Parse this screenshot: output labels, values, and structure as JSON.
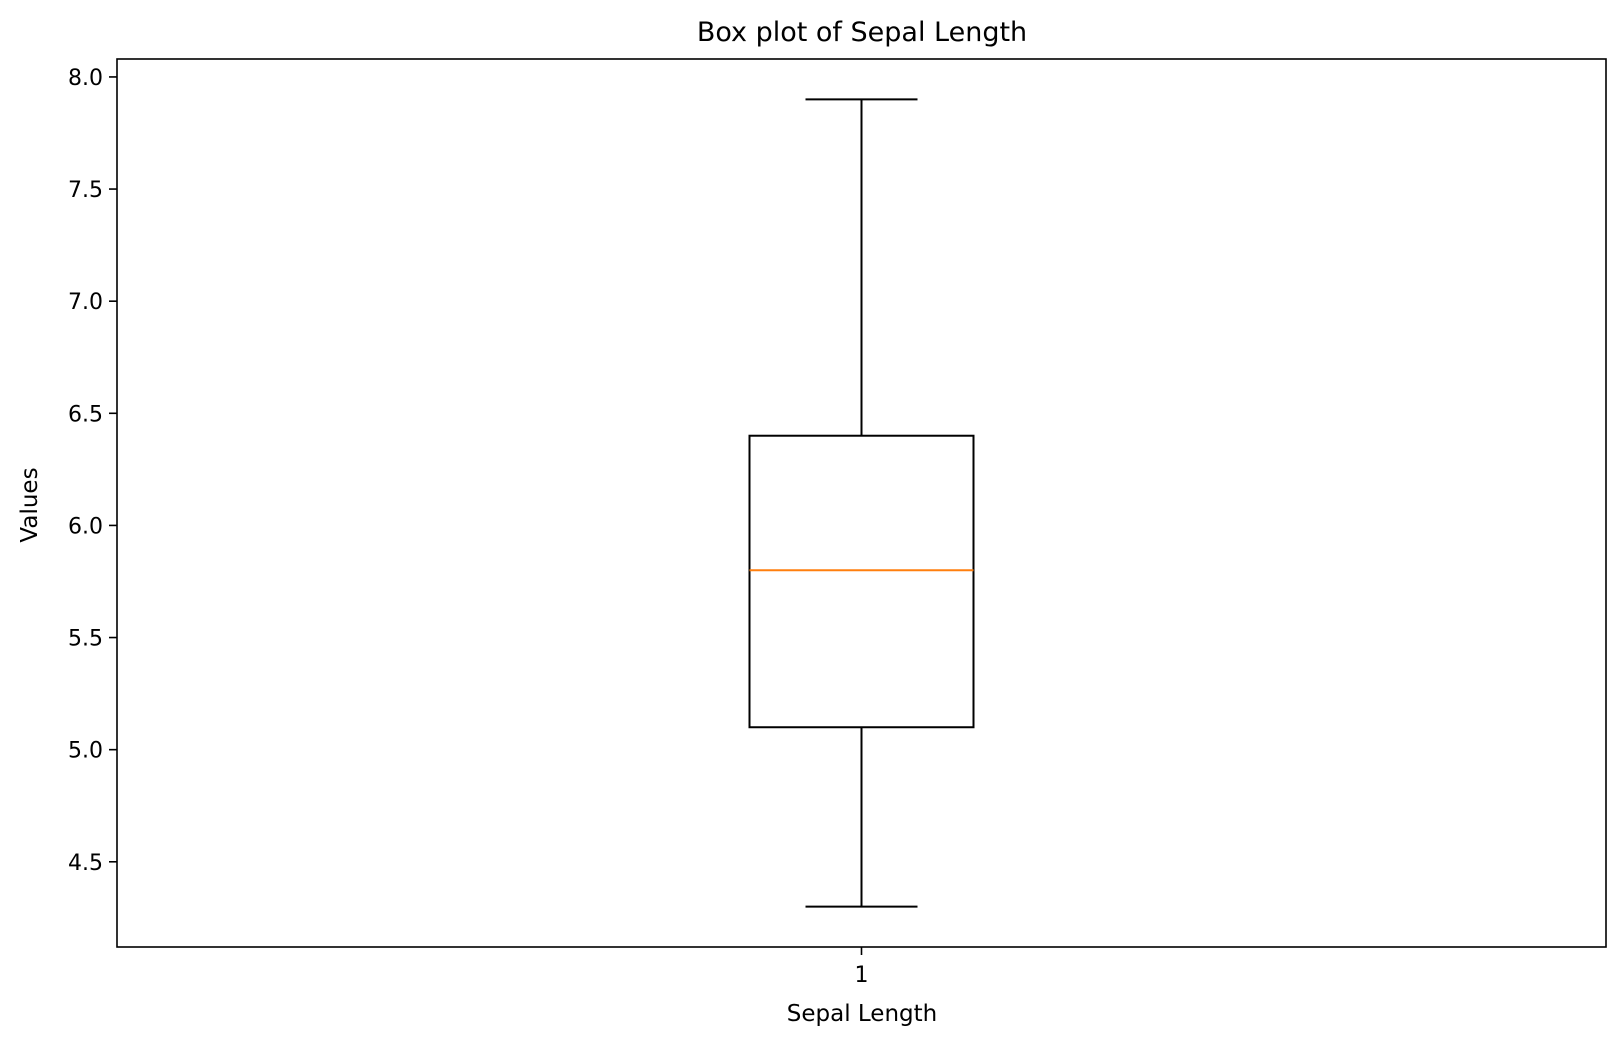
{
  "chart_data": {
    "type": "box",
    "title": "Box plot of Sepal Length",
    "xlabel": "Sepal Length",
    "ylabel": "Values",
    "categories": [
      "1"
    ],
    "boxes": [
      {
        "category": "1",
        "whisker_low": 4.3,
        "q1": 5.1,
        "median": 5.8,
        "q3": 6.4,
        "whisker_high": 7.9
      }
    ],
    "ylim": [
      4.12,
      8.08
    ],
    "y_ticks": [
      4.5,
      5.0,
      5.5,
      6.0,
      6.5,
      7.0,
      7.5,
      8.0
    ],
    "y_tick_labels": [
      "4.5",
      "5.0",
      "5.5",
      "6.0",
      "6.5",
      "7.0",
      "7.5",
      "8.0"
    ],
    "grid": false,
    "colors": {
      "box": "#000000",
      "median": "#ff7f0e",
      "frame": "#000000"
    }
  }
}
